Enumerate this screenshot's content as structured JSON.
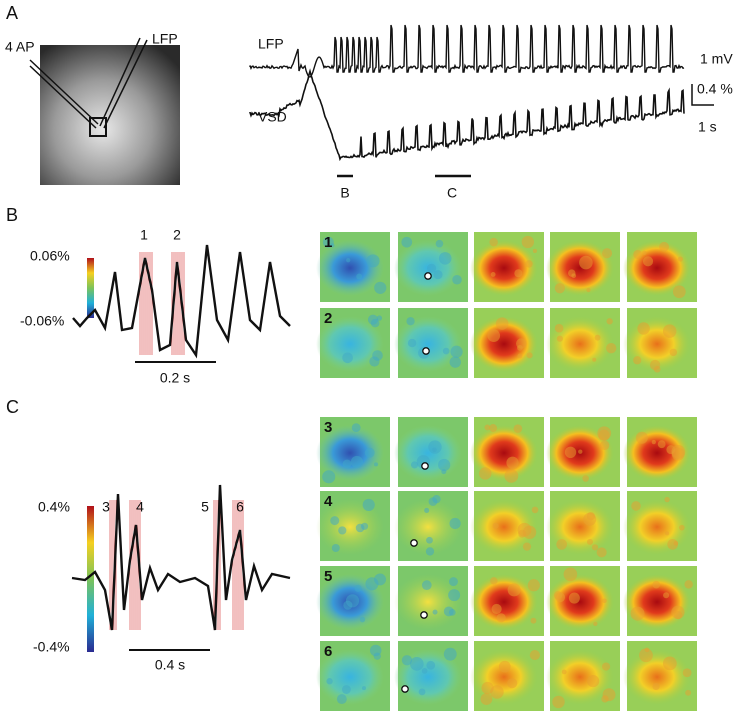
{
  "panels": [
    {
      "label": "A",
      "electrodes": [
        "4 AP",
        "LFP"
      ],
      "traces": [
        "LFP",
        "VSD"
      ],
      "scale_bars": [
        "1 mV",
        "0.4 %",
        "1 s"
      ],
      "epochs": [
        "B",
        "C"
      ]
    },
    {
      "label": "B",
      "color_scale": [
        "0.06%",
        "-0.06%"
      ],
      "windows": [
        "1",
        "2"
      ],
      "time_bar": "0.2 s",
      "map_rows": [
        "1",
        "2"
      ]
    },
    {
      "label": "C",
      "color_scale": [
        "0.4%",
        "-0.4%"
      ],
      "windows": [
        "3",
        "4",
        "5",
        "6"
      ],
      "time_bar": "0.4 s",
      "map_rows": [
        "3",
        "4",
        "5",
        "6"
      ]
    }
  ]
}
